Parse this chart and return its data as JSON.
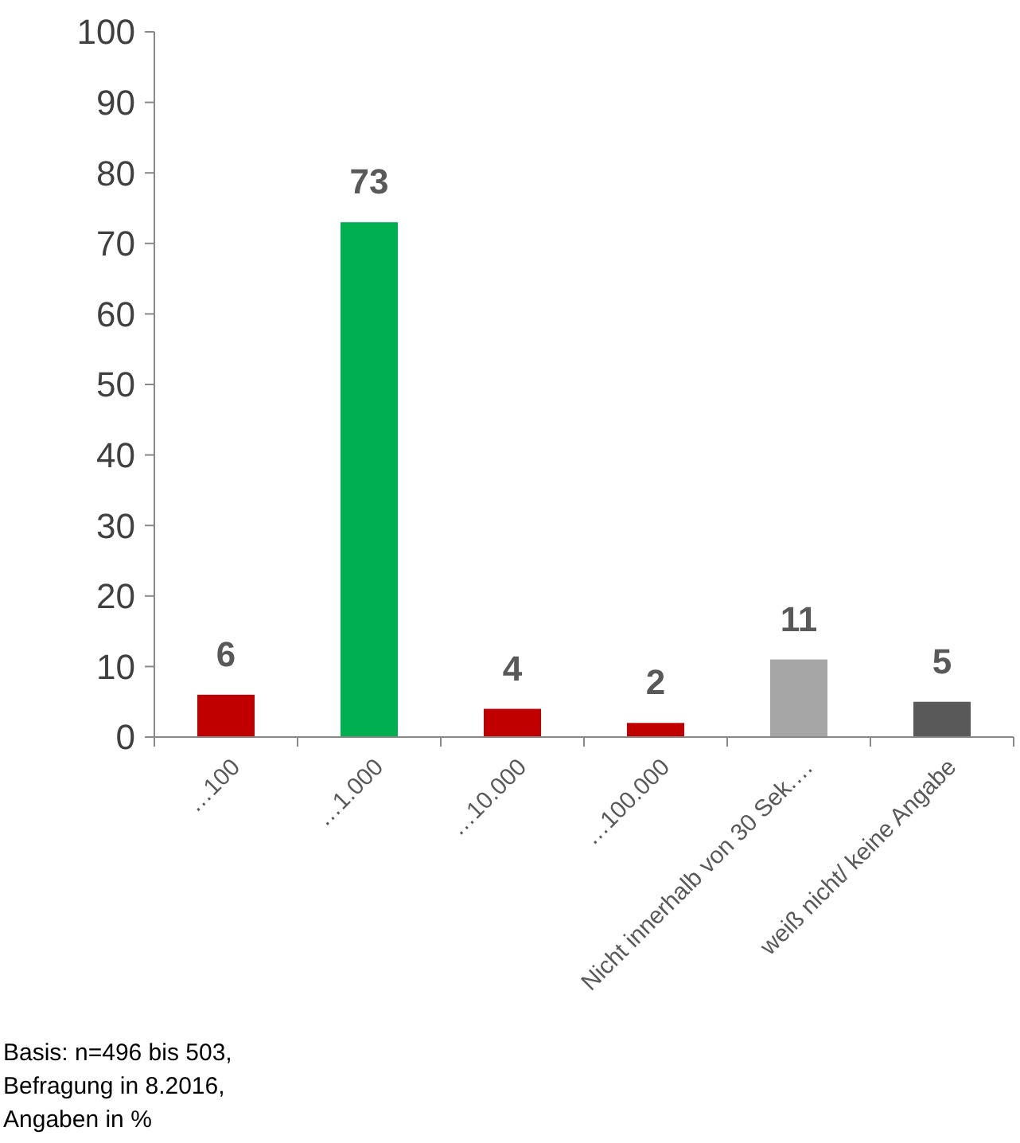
{
  "chart_data": {
    "type": "bar",
    "categories": [
      "…100",
      "…1.000",
      "…10.000",
      "…100.000",
      "Nicht innerhalb von 30 Sek.…",
      "weiß nicht/   keine Angabe"
    ],
    "values": [
      6,
      73,
      4,
      2,
      11,
      5
    ],
    "colors": [
      "#c00000",
      "#00b050",
      "#c00000",
      "#c00000",
      "#a6a6a6",
      "#595959"
    ],
    "ylim": [
      0,
      100
    ],
    "yticks": [
      0,
      10,
      20,
      30,
      40,
      50,
      60,
      70,
      80,
      90,
      100
    ],
    "data_labels": true,
    "grid": false,
    "annotations": [
      "Basis: n=496 bis 503,",
      "Befragung in 8.2016,",
      "Angaben in %"
    ]
  }
}
